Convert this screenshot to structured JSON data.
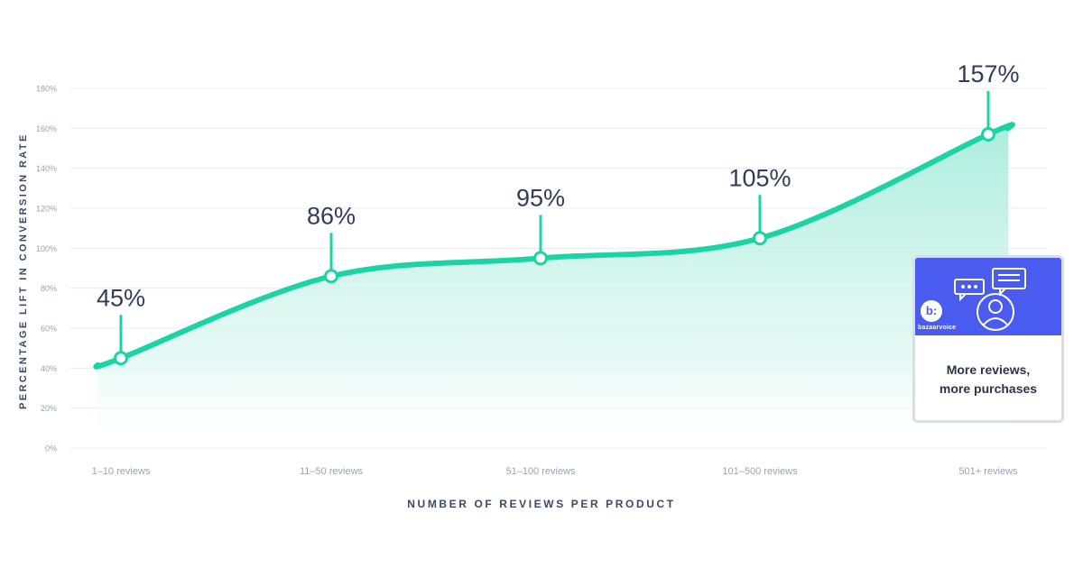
{
  "chart_data": {
    "type": "area",
    "categories": [
      "1–10 reviews",
      "11–50 reviews",
      "51–100 reviews",
      "101–500 reviews",
      "501+ reviews"
    ],
    "values": [
      45,
      86,
      95,
      105,
      157
    ],
    "point_labels": [
      "45%",
      "86%",
      "95%",
      "105%",
      "157%"
    ],
    "xlabel": "NUMBER OF REVIEWS PER PRODUCT",
    "ylabel": "PERCENTAGE LIFT IN CONVERSION RATE",
    "ylim": [
      0,
      180
    ],
    "yticks": [
      "0%",
      "20%",
      "40%",
      "60%",
      "80%",
      "100%",
      "120%",
      "140%",
      "160%",
      "180%"
    ],
    "grid": true
  },
  "colors": {
    "line": "#1cd3a5",
    "area_top": "#a6ecdc",
    "grid": "#ececf0",
    "tick_text": "#9aa2b4",
    "value_text": "#2f3d5a",
    "card_banner": "#4a5cf0"
  },
  "card": {
    "brand_badge": "b:",
    "brand_name": "bazaarvoice",
    "caption_line1": "More reviews,",
    "caption_line2": "more purchases",
    "icons": [
      "chat-bubble-icon",
      "document-icon",
      "user-avatar-icon"
    ]
  }
}
